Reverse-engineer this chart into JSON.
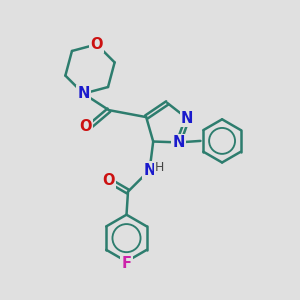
{
  "bg_color": "#e0e0e0",
  "bond_color": "#2d7d6e",
  "N_color": "#1a1acc",
  "O_color": "#cc1111",
  "F_color": "#cc22aa",
  "H_color": "#444444",
  "bond_width": 1.8,
  "font_size": 10.5,
  "xlim": [
    0,
    10
  ],
  "ylim": [
    0,
    10
  ]
}
